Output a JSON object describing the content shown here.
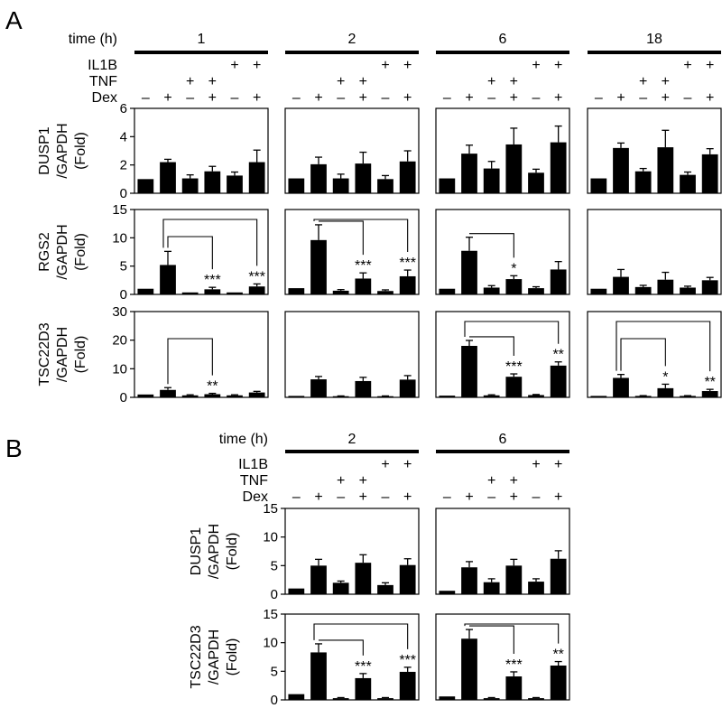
{
  "panels": [
    {
      "letter": "A",
      "time_label": "time (h)",
      "times": [
        "1",
        "2",
        "6",
        "18"
      ]
    },
    {
      "letter": "B",
      "time_label": "time (h)",
      "times": [
        "2",
        "6"
      ]
    }
  ],
  "treatments": {
    "il1b": "IL1B",
    "tnf": "TNF",
    "dex": "Dex",
    "plus": "+",
    "minus": "–"
  },
  "conditions": [
    {
      "il1b": "",
      "tnf": "",
      "dex": "–"
    },
    {
      "il1b": "",
      "tnf": "",
      "dex": "+"
    },
    {
      "il1b": "",
      "tnf": "+",
      "dex": "–"
    },
    {
      "il1b": "",
      "tnf": "+",
      "dex": "+"
    },
    {
      "il1b": "+",
      "tnf": "",
      "dex": "–"
    },
    {
      "il1b": "+",
      "tnf": "",
      "dex": "+"
    }
  ],
  "chart_data": [
    {
      "type": "bar",
      "panel": "A",
      "gene": "DUSP1",
      "ylabel": [
        "DUSP1",
        "/GAPDH",
        "(Fold)"
      ],
      "ylim": [
        0,
        6
      ],
      "yticks": [
        0,
        2,
        4,
        6
      ],
      "categories": [
        "–Dex",
        "+Dex",
        "TNF –Dex",
        "TNF +Dex",
        "IL1B –Dex",
        "IL1B +Dex"
      ],
      "series": [
        {
          "name": "1 h",
          "values": [
            1.0,
            2.2,
            1.05,
            1.55,
            1.25,
            2.2
          ],
          "errors": [
            0,
            0.2,
            0.25,
            0.35,
            0.25,
            0.85
          ],
          "sig": [],
          "brackets": []
        },
        {
          "name": "2 h",
          "values": [
            1.05,
            2.05,
            1.05,
            2.1,
            1.0,
            2.25
          ],
          "errors": [
            0,
            0.5,
            0.3,
            0.8,
            0.25,
            0.75
          ],
          "sig": [],
          "brackets": []
        },
        {
          "name": "6 h",
          "values": [
            1.05,
            2.8,
            1.75,
            3.45,
            1.45,
            3.6
          ],
          "errors": [
            0,
            0.6,
            0.5,
            1.15,
            0.25,
            1.15
          ],
          "sig": [],
          "brackets": []
        },
        {
          "name": "18 h",
          "values": [
            1.05,
            3.2,
            1.55,
            3.25,
            1.3,
            2.75
          ],
          "errors": [
            0,
            0.35,
            0.2,
            1.2,
            0.2,
            0.4
          ],
          "sig": [],
          "brackets": []
        }
      ]
    },
    {
      "type": "bar",
      "panel": "A",
      "gene": "RGS2",
      "ylabel": [
        "RGS2",
        "/GAPDH",
        "(Fold)"
      ],
      "ylim": [
        0,
        15
      ],
      "yticks": [
        0,
        5,
        10,
        15
      ],
      "categories": [
        "–Dex",
        "+Dex",
        "TNF –Dex",
        "TNF +Dex",
        "IL1B –Dex",
        "IL1B +Dex"
      ],
      "series": [
        {
          "name": "1 h",
          "values": [
            1.0,
            5.2,
            0.35,
            0.9,
            0.35,
            1.4
          ],
          "errors": [
            0,
            2.4,
            0,
            0.35,
            0,
            0.45
          ],
          "sig": [
            "",
            "",
            "",
            "***",
            "",
            "***"
          ],
          "brackets": [
            {
              "from": 1,
              "to": 3,
              "level": 0
            },
            {
              "from": 1,
              "to": 5,
              "level": 1
            }
          ]
        },
        {
          "name": "2 h",
          "values": [
            1.1,
            9.6,
            0.65,
            2.8,
            0.6,
            3.2
          ],
          "errors": [
            0,
            2.7,
            0.2,
            1.0,
            0.2,
            1.1
          ],
          "sig": [
            "",
            "",
            "",
            "***",
            "",
            "***"
          ],
          "brackets": [
            {
              "from": 1,
              "to": 3,
              "level": 0
            },
            {
              "from": 1,
              "to": 5,
              "level": 1
            }
          ]
        },
        {
          "name": "6 h",
          "values": [
            1.0,
            7.7,
            1.2,
            2.7,
            1.1,
            4.4
          ],
          "errors": [
            0,
            2.4,
            0.35,
            0.6,
            0.25,
            1.4
          ],
          "sig": [
            "",
            "",
            "",
            "*",
            "",
            ""
          ],
          "brackets": [
            {
              "from": 1,
              "to": 3,
              "level": 0
            }
          ]
        },
        {
          "name": "18 h",
          "values": [
            1.0,
            3.1,
            1.3,
            2.6,
            1.2,
            2.5
          ],
          "errors": [
            0,
            1.3,
            0.3,
            1.3,
            0.25,
            0.5
          ],
          "sig": [],
          "brackets": []
        }
      ]
    },
    {
      "type": "bar",
      "panel": "A",
      "gene": "TSC22D3",
      "ylabel": [
        "TSC22D3",
        "/GAPDH",
        "(Fold)"
      ],
      "ylim": [
        0,
        30
      ],
      "yticks": [
        0,
        10,
        20,
        30
      ],
      "categories": [
        "–Dex",
        "+Dex",
        "TNF –Dex",
        "TNF +Dex",
        "IL1B –Dex",
        "IL1B +Dex"
      ],
      "series": [
        {
          "name": "1 h",
          "values": [
            1.0,
            2.6,
            0.7,
            1.1,
            0.7,
            1.7
          ],
          "errors": [
            0,
            0.8,
            0.2,
            0.3,
            0.2,
            0.4
          ],
          "sig": [
            "",
            "",
            "",
            "**",
            "",
            ""
          ],
          "brackets": [
            {
              "from": 1,
              "to": 3,
              "level": 0
            }
          ]
        },
        {
          "name": "2 h",
          "values": [
            0.5,
            6.3,
            0.4,
            5.7,
            0.4,
            6.2
          ],
          "errors": [
            0,
            1.0,
            0.1,
            1.3,
            0.1,
            1.4
          ],
          "sig": [],
          "brackets": []
        },
        {
          "name": "6 h",
          "values": [
            0.6,
            18.0,
            0.7,
            7.2,
            0.8,
            11.1
          ],
          "errors": [
            0,
            1.9,
            0.2,
            1.0,
            0.2,
            1.3
          ],
          "sig": [
            "",
            "",
            "",
            "***",
            "",
            "**"
          ],
          "brackets": [
            {
              "from": 1,
              "to": 3,
              "level": 0
            },
            {
              "from": 1,
              "to": 5,
              "level": 1
            }
          ]
        },
        {
          "name": "18 h",
          "values": [
            0.5,
            6.8,
            0.5,
            3.2,
            0.5,
            2.2
          ],
          "errors": [
            0,
            1.2,
            0.1,
            1.4,
            0.1,
            0.6
          ],
          "sig": [
            "",
            "",
            "",
            "*",
            "",
            "**"
          ],
          "brackets": [
            {
              "from": 1,
              "to": 3,
              "level": 0
            },
            {
              "from": 1,
              "to": 5,
              "level": 1
            }
          ]
        }
      ]
    },
    {
      "type": "bar",
      "panel": "B",
      "gene": "DUSP1",
      "ylabel": [
        "DUSP1",
        "/GAPDH",
        "(Fold)"
      ],
      "ylim": [
        0,
        15
      ],
      "yticks": [
        0,
        5,
        10,
        15
      ],
      "categories": [
        "–Dex",
        "+Dex",
        "TNF –Dex",
        "TNF +Dex",
        "IL1B –Dex",
        "IL1B +Dex"
      ],
      "series": [
        {
          "name": "2 h",
          "values": [
            1.0,
            5.0,
            2.0,
            5.5,
            1.6,
            5.1
          ],
          "errors": [
            0,
            1.1,
            0.3,
            1.4,
            0.4,
            1.1
          ],
          "sig": [],
          "brackets": []
        },
        {
          "name": "6 h",
          "values": [
            0.6,
            4.7,
            2.1,
            5.0,
            2.2,
            6.2
          ],
          "errors": [
            0,
            1.0,
            0.6,
            1.1,
            0.5,
            1.4
          ],
          "sig": [],
          "brackets": []
        }
      ]
    },
    {
      "type": "bar",
      "panel": "B",
      "gene": "TSC22D3",
      "ylabel": [
        "TSC22D3",
        "/GAPDH",
        "(Fold)"
      ],
      "ylim": [
        0,
        15
      ],
      "yticks": [
        0,
        5,
        10,
        15
      ],
      "categories": [
        "–Dex",
        "+Dex",
        "TNF –Dex",
        "TNF +Dex",
        "IL1B –Dex",
        "IL1B +Dex"
      ],
      "series": [
        {
          "name": "2 h",
          "values": [
            1.0,
            8.3,
            0.3,
            3.8,
            0.3,
            4.9
          ],
          "errors": [
            0,
            1.5,
            0.1,
            0.8,
            0.1,
            0.8
          ],
          "sig": [
            "",
            "",
            "",
            "***",
            "",
            "***"
          ],
          "brackets": [
            {
              "from": 1,
              "to": 3,
              "level": 0
            },
            {
              "from": 1,
              "to": 5,
              "level": 1
            }
          ]
        },
        {
          "name": "6 h",
          "values": [
            0.6,
            10.7,
            0.3,
            4.1,
            0.3,
            6.0
          ],
          "errors": [
            0,
            1.6,
            0.1,
            0.8,
            0.1,
            0.7
          ],
          "sig": [
            "",
            "",
            "",
            "***",
            "",
            "**"
          ],
          "brackets": [
            {
              "from": 1,
              "to": 3,
              "level": 0
            },
            {
              "from": 1,
              "to": 5,
              "level": 1
            }
          ]
        }
      ]
    }
  ]
}
